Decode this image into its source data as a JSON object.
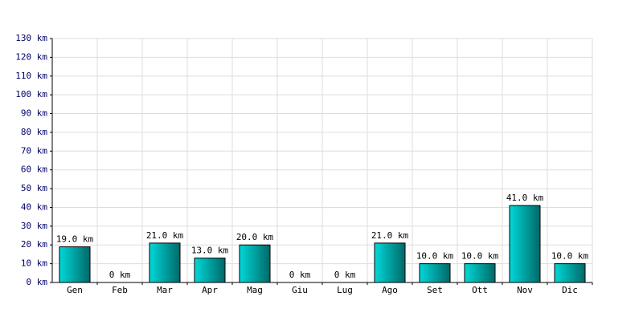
{
  "chart_data": {
    "type": "bar",
    "categories": [
      "Gen",
      "Feb",
      "Mar",
      "Apr",
      "Mag",
      "Giu",
      "Lug",
      "Ago",
      "Set",
      "Ott",
      "Nov",
      "Dic"
    ],
    "values": [
      19,
      0,
      21,
      13,
      20,
      0,
      0,
      21,
      10,
      10,
      41,
      10
    ],
    "value_labels": [
      "19.0 km",
      "0 km",
      "21.0 km",
      "13.0 km",
      "20.0 km",
      "0 km",
      "0 km",
      "21.0 km",
      "10.0 km",
      "10.0 km",
      "41.0 km",
      "10.0 km"
    ],
    "color": "#00d8d8",
    "ylim": [
      0,
      130
    ],
    "yticks": [
      {
        "value": 0,
        "label": "0 km"
      },
      {
        "value": 10,
        "label": "10 km"
      },
      {
        "value": 20,
        "label": "20 km"
      },
      {
        "value": 30,
        "label": "30 km"
      },
      {
        "value": 40,
        "label": "40 km"
      },
      {
        "value": 50,
        "label": "50 km"
      },
      {
        "value": 60,
        "label": "60 km"
      },
      {
        "value": 70,
        "label": "70 km"
      },
      {
        "value": 80,
        "label": "80 km"
      },
      {
        "value": 90,
        "label": "90 km"
      },
      {
        "value": 100,
        "label": "100 km"
      },
      {
        "value": 110,
        "label": "110 km"
      },
      {
        "value": 120,
        "label": "120 km"
      },
      {
        "value": 130,
        "label": "130 km"
      }
    ],
    "grid": true
  }
}
